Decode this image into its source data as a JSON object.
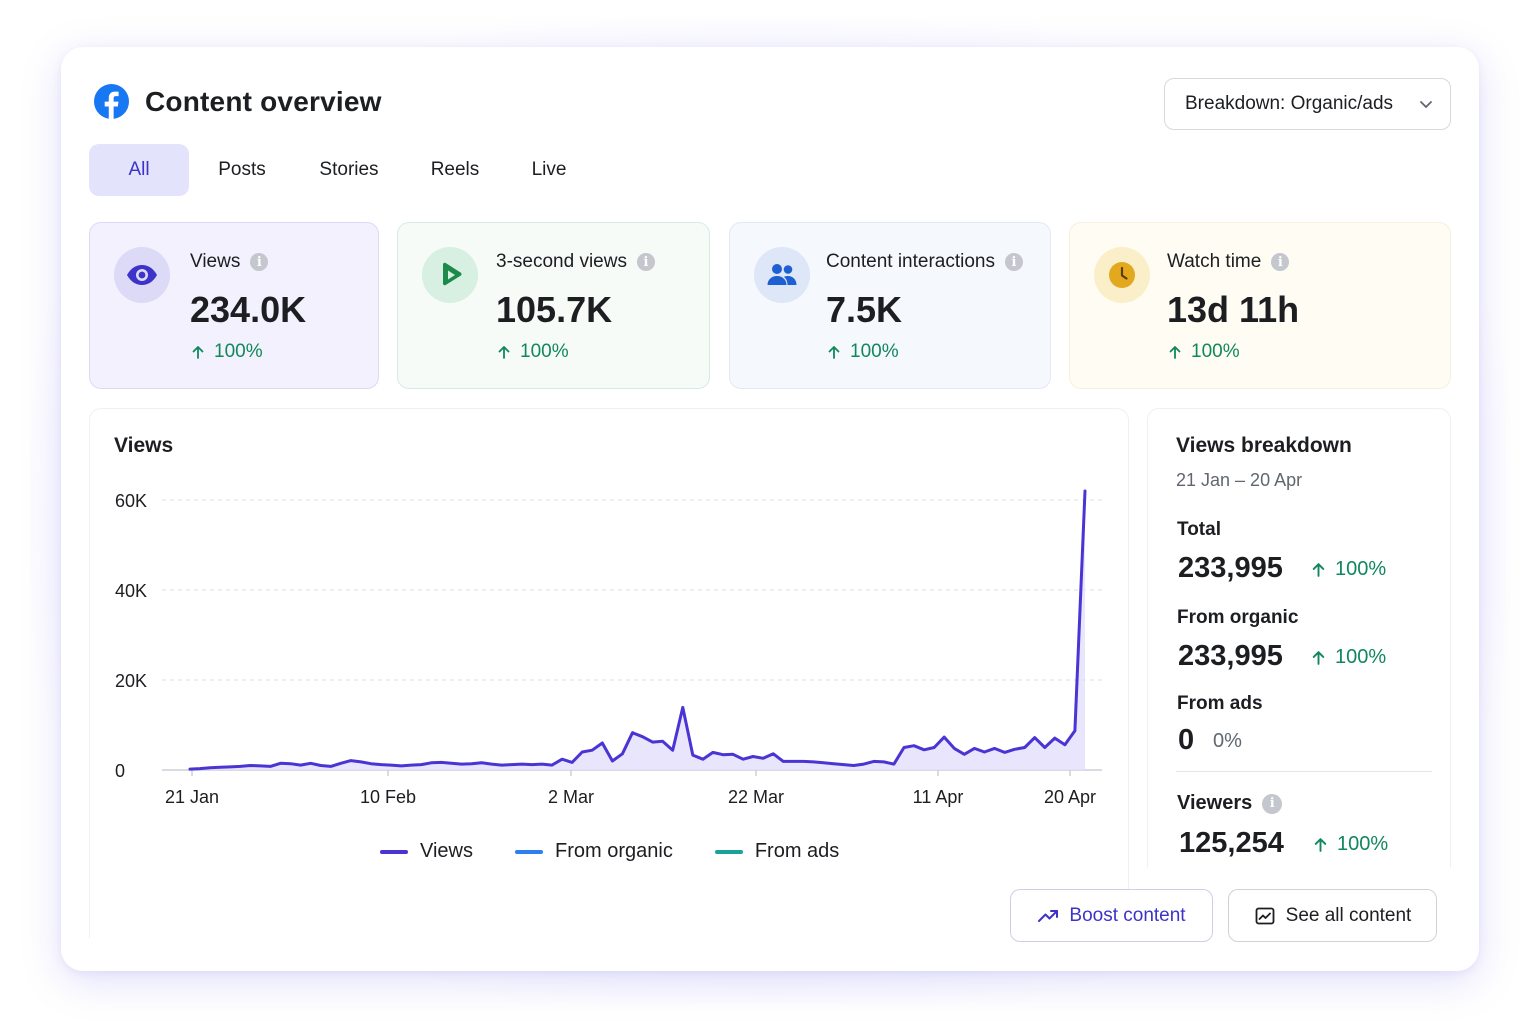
{
  "header": {
    "title": "Content overview",
    "app_icon": "facebook-icon"
  },
  "breakdown_select": {
    "value": "Breakdown: Organic/ads"
  },
  "tabs": [
    {
      "label": "All",
      "active": true
    },
    {
      "label": "Posts",
      "active": false
    },
    {
      "label": "Stories",
      "active": false
    },
    {
      "label": "Reels",
      "active": false
    },
    {
      "label": "Live",
      "active": false
    }
  ],
  "metrics": [
    {
      "label": "Views",
      "value": "234.0K",
      "change": "100%",
      "icon": "eye-icon",
      "color": "#3d33c9"
    },
    {
      "label": "3-second views",
      "value": "105.7K",
      "change": "100%",
      "icon": "play-icon",
      "color": "#1b8a4a"
    },
    {
      "label": "Content interactions",
      "value": "7.5K",
      "change": "100%",
      "icon": "people-icon",
      "color": "#1e5fd1"
    },
    {
      "label": "Watch time",
      "value": "13d 11h",
      "change": "100%",
      "icon": "clock-icon",
      "color": "#e2a81e"
    }
  ],
  "chart_section": {
    "title": "Views"
  },
  "chart_data": {
    "type": "area",
    "title": "Views",
    "x_tick_labels": [
      "21 Jan",
      "10 Feb",
      "2 Mar",
      "22 Mar",
      "11 Apr",
      "20 Apr"
    ],
    "y_tick_labels": [
      "0",
      "20K",
      "40K",
      "60K"
    ],
    "ylim": [
      0,
      60000
    ],
    "grid": true,
    "legend_position": "bottom",
    "series": [
      {
        "name": "Views",
        "color": "#4a34d4",
        "values": [
          200,
          300,
          500,
          600,
          700,
          800,
          1000,
          900,
          800,
          1500,
          1400,
          1100,
          1500,
          1000,
          800,
          1500,
          2100,
          1800,
          1400,
          1200,
          1100,
          900,
          1100,
          1200,
          1600,
          1700,
          1500,
          1300,
          1400,
          1600,
          1300,
          1100,
          1200,
          1300,
          1200,
          1300,
          1100,
          2400,
          1700,
          4000,
          4400,
          6000,
          2000,
          3600,
          8300,
          7400,
          6200,
          6400,
          4400,
          13900,
          3300,
          2400,
          3900,
          3400,
          3500,
          2400,
          3000,
          2600,
          3600,
          1900,
          1900,
          1900,
          1800,
          1600,
          1400,
          1200,
          1000,
          1300,
          1900,
          1800,
          1300,
          5000,
          5400,
          4500,
          5000,
          7300,
          4800,
          3500,
          4800,
          4000,
          4800,
          3900,
          4600,
          5000,
          7200,
          5000,
          7100,
          5600,
          8700,
          62000
        ]
      },
      {
        "name": "From organic",
        "color": "#2d7ff0",
        "values": []
      },
      {
        "name": "From ads",
        "color": "#1aa29a",
        "values": []
      }
    ]
  },
  "views_breakdown": {
    "title": "Views breakdown",
    "range": "21 Jan – 20 Apr",
    "total_label": "Total",
    "total_value": "233,995",
    "total_change": "100%",
    "organic_label": "From organic",
    "organic_value": "233,995",
    "organic_change": "100%",
    "ads_label": "From ads",
    "ads_value": "0",
    "ads_change": "0%",
    "viewers_label": "Viewers",
    "viewers_value": "125,254",
    "viewers_change": "100%"
  },
  "actions": {
    "boost_label": "Boost content",
    "see_all_label": "See all content"
  }
}
